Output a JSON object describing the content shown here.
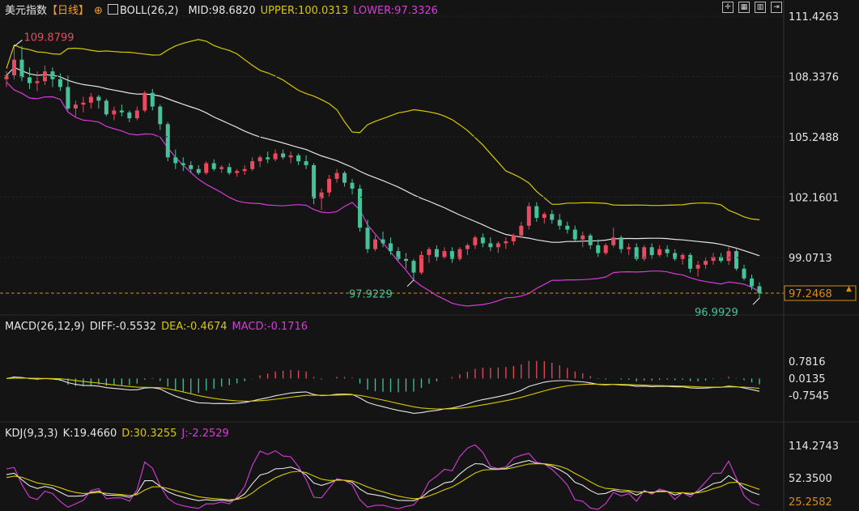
{
  "symbol": "美元指数",
  "period": "【日线】",
  "boll_header": {
    "label": "BOLL(26,2)",
    "mid": "MID:98.6820",
    "upper": "UPPER:100.0313",
    "lower": "LOWER:97.3326"
  },
  "macd_header": {
    "label": "MACD(26,12,9)",
    "diff": "DIFF:-0.5532",
    "dea": "DEA:-0.4674",
    "macd": "MACD:-0.1716"
  },
  "kdj_header": {
    "label": "KDJ(9,3,3)",
    "k": "K:19.4660",
    "d": "D:30.3255",
    "j": "J:-2.2529"
  },
  "toolbar_icons": [
    "crosshair-icon",
    "grid-icon",
    "chart-style-icon",
    "fullscreen-icon"
  ],
  "colors": {
    "up": "#e84a5f",
    "down": "#46c29a",
    "mid": "#e6e6e6",
    "upper": "#d8c800",
    "lower": "#d93ad9",
    "price_line": "#d98b1a"
  },
  "chart_data": [
    {
      "type": "candlestick",
      "name": "price",
      "y_ticks": [
        "111.4263",
        "108.3376",
        "105.2488",
        "102.1601",
        "99.0713"
      ],
      "current_price": "97.2468",
      "annotations": [
        {
          "text": "109.8799",
          "role": "high"
        },
        {
          "text": "97.9229",
          "role": "low"
        },
        {
          "text": "96.9929",
          "role": "low"
        }
      ],
      "ohlc": [
        [
          108.2,
          108.6,
          107.8,
          108.4
        ],
        [
          108.4,
          109.9,
          108.2,
          109.2
        ],
        [
          109.2,
          109.9,
          108.1,
          108.3
        ],
        [
          108.3,
          108.8,
          107.7,
          108.0
        ],
        [
          108.0,
          108.6,
          107.6,
          108.1
        ],
        [
          108.1,
          108.9,
          107.9,
          108.6
        ],
        [
          108.6,
          108.8,
          107.8,
          108.2
        ],
        [
          108.2,
          108.5,
          107.6,
          107.8
        ],
        [
          107.8,
          108.4,
          106.6,
          106.7
        ],
        [
          106.7,
          107.1,
          106.3,
          106.9
        ],
        [
          106.9,
          107.3,
          106.5,
          107.0
        ],
        [
          107.0,
          107.5,
          106.7,
          107.3
        ],
        [
          107.3,
          107.4,
          106.7,
          107.1
        ],
        [
          107.1,
          107.2,
          106.3,
          106.4
        ],
        [
          106.4,
          106.8,
          106.1,
          106.6
        ],
        [
          106.6,
          106.9,
          106.3,
          106.5
        ],
        [
          106.5,
          106.6,
          106.0,
          106.2
        ],
        [
          106.2,
          106.8,
          106.1,
          106.6
        ],
        [
          106.6,
          107.6,
          106.5,
          107.5
        ],
        [
          107.5,
          107.7,
          106.6,
          106.8
        ],
        [
          106.8,
          106.9,
          105.6,
          105.9
        ],
        [
          105.9,
          106.0,
          104.0,
          104.2
        ],
        [
          104.2,
          104.6,
          103.6,
          103.9
        ],
        [
          103.9,
          104.2,
          103.5,
          103.8
        ],
        [
          103.8,
          104.0,
          103.4,
          103.6
        ],
        [
          103.6,
          103.8,
          103.3,
          103.4
        ],
        [
          103.4,
          104.0,
          103.3,
          103.9
        ],
        [
          103.9,
          104.1,
          103.5,
          103.6
        ],
        [
          103.6,
          103.8,
          103.4,
          103.7
        ],
        [
          103.7,
          103.9,
          103.3,
          103.4
        ],
        [
          103.4,
          103.6,
          103.2,
          103.5
        ],
        [
          103.5,
          103.8,
          103.3,
          103.6
        ],
        [
          103.6,
          104.2,
          103.5,
          104.0
        ],
        [
          104.0,
          104.3,
          103.7,
          104.2
        ],
        [
          104.2,
          104.5,
          103.9,
          104.1
        ],
        [
          104.1,
          104.6,
          104.0,
          104.4
        ],
        [
          104.4,
          104.6,
          104.1,
          104.2
        ],
        [
          104.2,
          104.5,
          103.9,
          104.3
        ],
        [
          104.3,
          104.4,
          103.8,
          104.0
        ],
        [
          104.0,
          104.3,
          103.6,
          103.8
        ],
        [
          103.8,
          103.9,
          101.8,
          102.1
        ],
        [
          102.1,
          102.6,
          101.5,
          102.4
        ],
        [
          102.4,
          103.3,
          102.2,
          103.1
        ],
        [
          103.1,
          103.6,
          102.9,
          103.4
        ],
        [
          103.4,
          103.5,
          102.7,
          102.9
        ],
        [
          102.9,
          103.1,
          102.3,
          102.6
        ],
        [
          102.6,
          102.8,
          100.4,
          100.6
        ],
        [
          100.6,
          101.0,
          99.3,
          99.5
        ],
        [
          99.5,
          100.2,
          99.4,
          100.0
        ],
        [
          100.0,
          100.4,
          99.6,
          99.8
        ],
        [
          99.8,
          100.1,
          99.2,
          99.4
        ],
        [
          99.4,
          99.6,
          98.9,
          99.0
        ],
        [
          99.0,
          99.3,
          98.5,
          98.9
        ],
        [
          98.9,
          99.0,
          97.9,
          98.3
        ],
        [
          98.3,
          99.4,
          98.2,
          99.2
        ],
        [
          99.2,
          99.6,
          98.8,
          99.5
        ],
        [
          99.5,
          99.7,
          98.9,
          99.1
        ],
        [
          99.1,
          99.6,
          99.0,
          99.4
        ],
        [
          99.4,
          99.6,
          98.8,
          99.0
        ],
        [
          99.0,
          99.6,
          98.9,
          99.5
        ],
        [
          99.5,
          99.8,
          99.2,
          99.7
        ],
        [
          99.7,
          100.2,
          99.5,
          100.1
        ],
        [
          100.1,
          100.3,
          99.6,
          99.8
        ],
        [
          99.8,
          100.1,
          99.4,
          99.6
        ],
        [
          99.6,
          99.9,
          99.3,
          99.8
        ],
        [
          99.8,
          100.1,
          99.5,
          99.9
        ],
        [
          99.9,
          100.3,
          99.7,
          100.2
        ],
        [
          100.2,
          100.9,
          100.1,
          100.7
        ],
        [
          100.7,
          101.9,
          100.5,
          101.7
        ],
        [
          101.7,
          101.9,
          100.9,
          101.1
        ],
        [
          101.1,
          101.4,
          100.8,
          101.3
        ],
        [
          101.3,
          101.5,
          100.8,
          101.0
        ],
        [
          101.0,
          101.3,
          100.5,
          100.7
        ],
        [
          100.7,
          100.9,
          100.3,
          100.5
        ],
        [
          100.5,
          100.7,
          99.9,
          100.0
        ],
        [
          100.0,
          100.4,
          99.6,
          100.2
        ],
        [
          100.2,
          100.3,
          99.5,
          99.7
        ],
        [
          99.7,
          100.0,
          99.1,
          99.3
        ],
        [
          99.3,
          99.8,
          99.2,
          99.7
        ],
        [
          99.7,
          100.6,
          99.6,
          100.1
        ],
        [
          100.1,
          100.2,
          99.3,
          99.5
        ],
        [
          99.5,
          99.8,
          99.2,
          99.6
        ],
        [
          99.6,
          99.8,
          98.9,
          99.0
        ],
        [
          99.0,
          99.7,
          98.9,
          99.6
        ],
        [
          99.6,
          99.8,
          99.0,
          99.2
        ],
        [
          99.2,
          99.7,
          99.1,
          99.5
        ],
        [
          99.5,
          99.7,
          99.1,
          99.3
        ],
        [
          99.3,
          99.5,
          98.9,
          99.0
        ],
        [
          99.0,
          99.3,
          98.7,
          99.2
        ],
        [
          99.2,
          99.3,
          98.3,
          98.5
        ],
        [
          98.5,
          98.9,
          98.1,
          98.7
        ],
        [
          98.7,
          99.1,
          98.5,
          98.9
        ],
        [
          98.9,
          99.3,
          98.7,
          99.1
        ],
        [
          99.1,
          99.3,
          98.8,
          98.9
        ],
        [
          98.9,
          99.6,
          98.7,
          99.4
        ],
        [
          99.4,
          99.5,
          98.4,
          98.5
        ],
        [
          98.5,
          98.7,
          97.9,
          98.0
        ],
        [
          98.0,
          98.2,
          97.4,
          97.6
        ],
        [
          97.6,
          97.8,
          96.99,
          97.25
        ]
      ]
    },
    {
      "type": "line",
      "name": "MACD",
      "y_ticks": [
        "0.7816",
        "0.0135",
        "-0.7545"
      ]
    },
    {
      "type": "line",
      "name": "KDJ",
      "y_ticks": [
        "114.2743",
        "52.3500"
      ],
      "current_value": "25.2582"
    }
  ]
}
